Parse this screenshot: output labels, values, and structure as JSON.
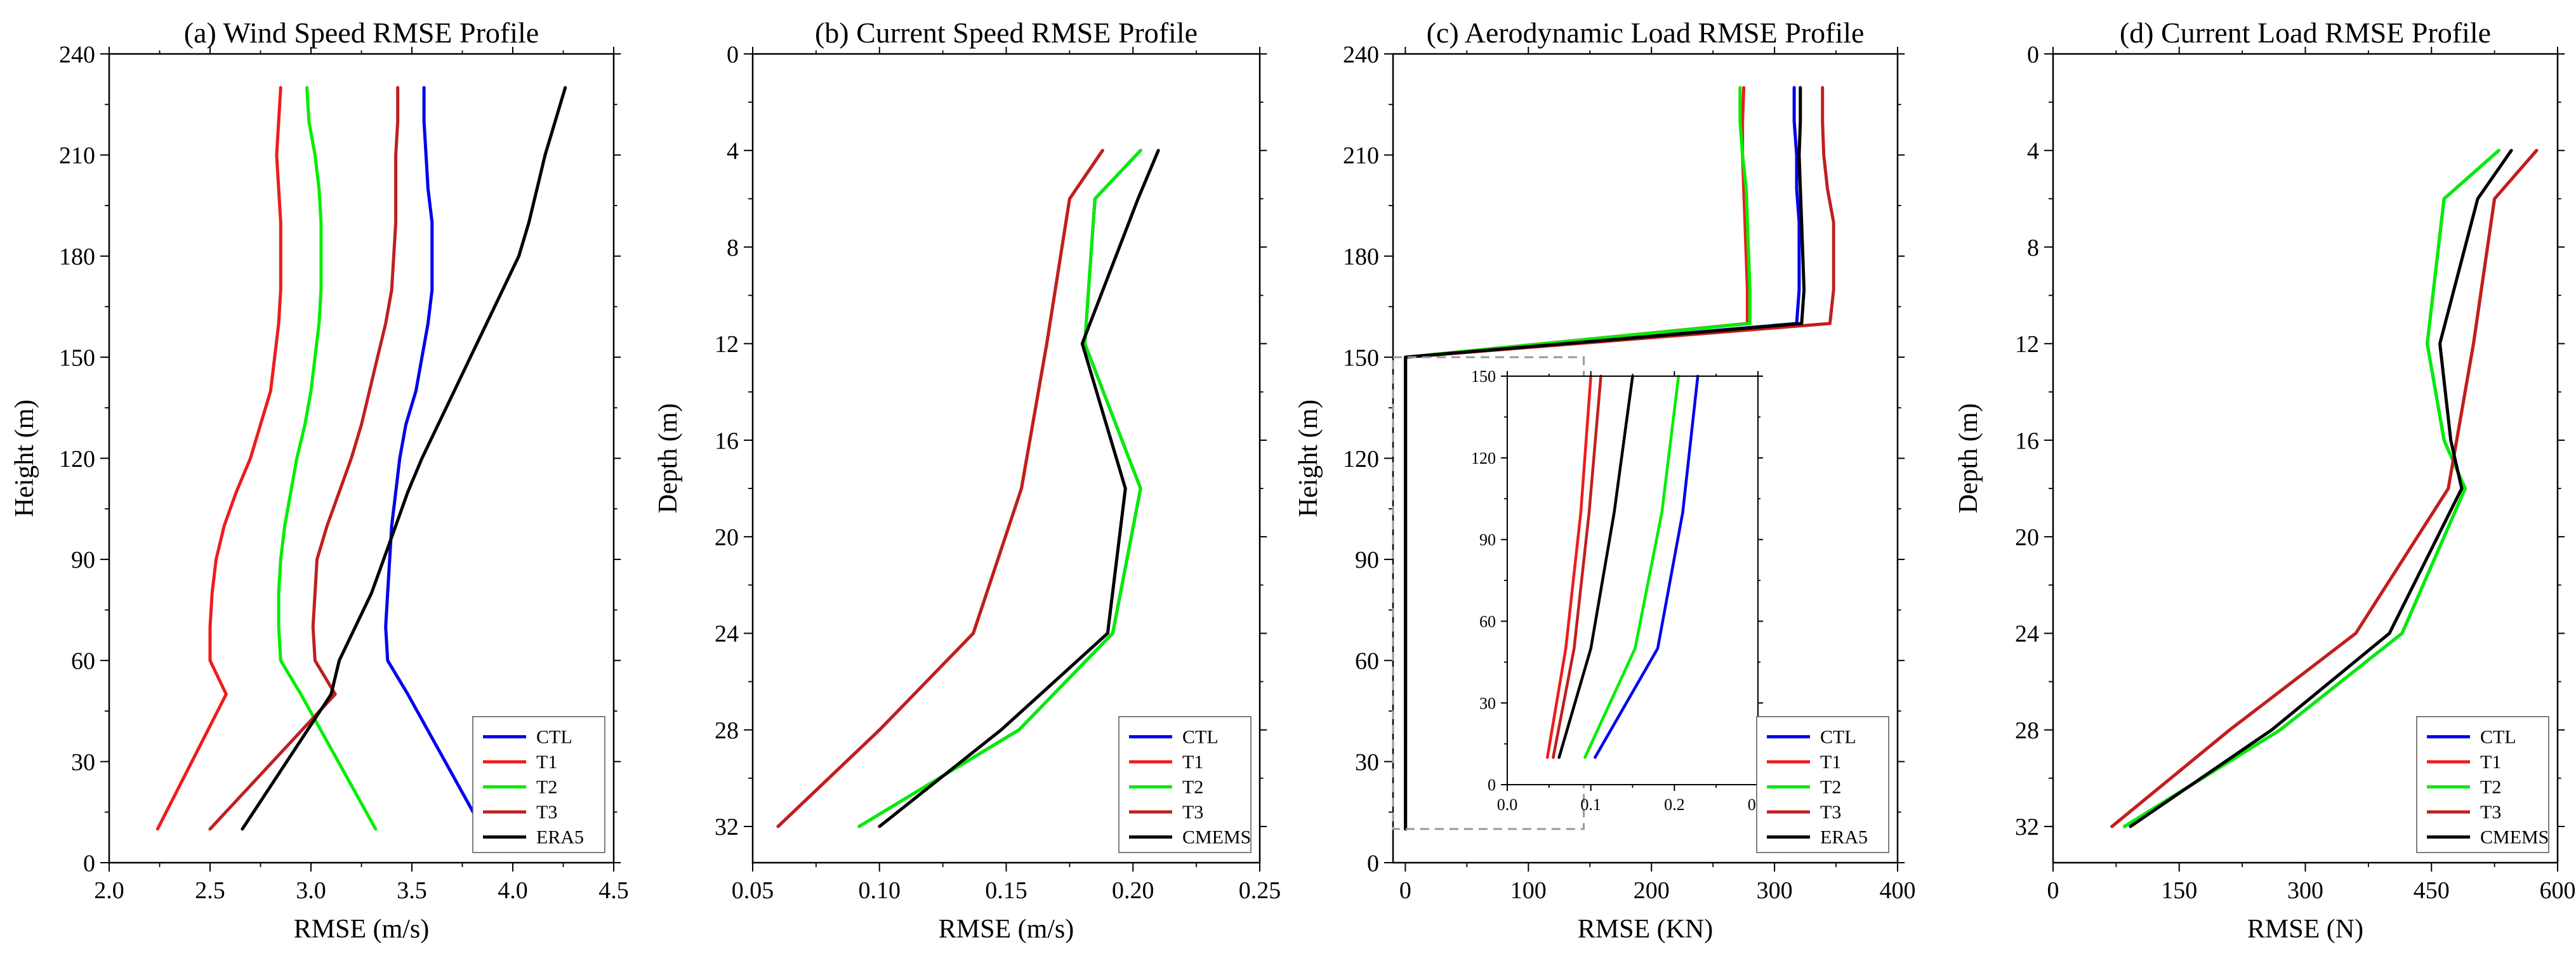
{
  "colors": {
    "CTL": "#0000ee",
    "T1": "#ee1c1c",
    "T2": "#00ee00",
    "T3": "#c01f1f",
    "ERA5": "#000000",
    "CMEMS": "#000000",
    "inset_box": "#999999"
  },
  "chart_data": [
    {
      "type": "line",
      "panel": "a",
      "title": "(a) Wind Speed RMSE Profile",
      "xlabel": "RMSE (m/s)",
      "ylabel": "Height (m)",
      "xlim": [
        2.0,
        4.5
      ],
      "ylim": [
        0,
        240
      ],
      "y_inverted": false,
      "xticks": [
        2.0,
        2.5,
        3.0,
        3.5,
        4.0,
        4.5
      ],
      "xtick_labels": [
        "2.0",
        "2.5",
        "3.0",
        "3.5",
        "4.0",
        "4.5"
      ],
      "yticks": [
        0,
        30,
        60,
        90,
        120,
        150,
        180,
        210,
        240
      ],
      "ytick_labels": [
        "0",
        "30",
        "60",
        "90",
        "120",
        "150",
        "180",
        "210",
        "240"
      ],
      "legend_position": "bottom-right",
      "y": [
        10,
        50,
        60,
        70,
        80,
        90,
        100,
        110,
        120,
        130,
        140,
        150,
        160,
        170,
        180,
        190,
        200,
        210,
        220,
        230
      ],
      "series": [
        {
          "name": "CTL",
          "color_key": "CTL",
          "x": [
            3.85,
            3.48,
            3.38,
            3.37,
            3.38,
            3.39,
            3.4,
            3.42,
            3.44,
            3.47,
            3.52,
            3.55,
            3.58,
            3.6,
            3.6,
            3.6,
            3.58,
            3.57,
            3.56,
            3.56
          ]
        },
        {
          "name": "T1",
          "color_key": "T1",
          "x": [
            2.24,
            2.58,
            2.5,
            2.5,
            2.51,
            2.53,
            2.57,
            2.63,
            2.7,
            2.75,
            2.8,
            2.82,
            2.84,
            2.85,
            2.85,
            2.85,
            2.84,
            2.83,
            2.84,
            2.85
          ]
        },
        {
          "name": "T2",
          "color_key": "T2",
          "x": [
            3.32,
            2.95,
            2.85,
            2.84,
            2.84,
            2.85,
            2.87,
            2.9,
            2.93,
            2.97,
            3.0,
            3.02,
            3.04,
            3.05,
            3.05,
            3.05,
            3.04,
            3.02,
            2.99,
            2.98
          ]
        },
        {
          "name": "T3",
          "color_key": "T3",
          "x": [
            2.5,
            3.12,
            3.02,
            3.01,
            3.02,
            3.03,
            3.08,
            3.14,
            3.2,
            3.25,
            3.29,
            3.33,
            3.37,
            3.4,
            3.41,
            3.42,
            3.42,
            3.42,
            3.43,
            3.43
          ]
        },
        {
          "name": "ERA5",
          "color_key": "ERA5",
          "x": [
            2.66,
            3.1,
            3.14,
            3.22,
            3.3,
            3.36,
            3.42,
            3.48,
            3.55,
            3.63,
            3.71,
            3.79,
            3.87,
            3.95,
            4.03,
            4.08,
            4.12,
            4.16,
            4.21,
            4.26
          ]
        }
      ]
    },
    {
      "type": "line",
      "panel": "b",
      "title": "(b) Current Speed RMSE Profile",
      "xlabel": "RMSE (m/s)",
      "ylabel": "Depth (m)",
      "xlim": [
        0.05,
        0.25
      ],
      "ylim": [
        0,
        33.5
      ],
      "y_inverted": true,
      "xticks": [
        0.05,
        0.1,
        0.15,
        0.2,
        0.25
      ],
      "xtick_labels": [
        "0.05",
        "0.10",
        "0.15",
        "0.20",
        "0.25"
      ],
      "yticks": [
        0,
        4,
        8,
        12,
        16,
        20,
        24,
        28,
        32
      ],
      "ytick_labels": [
        "0",
        "4",
        "8",
        "12",
        "16",
        "20",
        "24",
        "28",
        "32"
      ],
      "legend_position": "bottom-right",
      "y": [
        4,
        6,
        12,
        18,
        24,
        28,
        32
      ],
      "series": [
        {
          "name": "CTL",
          "color_key": "CTL",
          "x": [
            0.203,
            0.185,
            0.181,
            0.203,
            0.192,
            0.155,
            0.092
          ]
        },
        {
          "name": "T1",
          "color_key": "T1",
          "x": [
            0.188,
            0.175,
            0.166,
            0.156,
            0.137,
            0.1,
            0.06
          ]
        },
        {
          "name": "T2",
          "color_key": "T2",
          "x": [
            0.203,
            0.185,
            0.181,
            0.203,
            0.192,
            0.155,
            0.092
          ]
        },
        {
          "name": "T3",
          "color_key": "T3",
          "x": [
            0.188,
            0.175,
            0.166,
            0.156,
            0.137,
            0.1,
            0.06
          ]
        },
        {
          "name": "CMEMS",
          "color_key": "CMEMS",
          "x": [
            0.21,
            0.202,
            0.18,
            0.197,
            0.19,
            0.148,
            0.1
          ]
        }
      ]
    },
    {
      "type": "line",
      "panel": "c",
      "title": "(c) Aerodynamic Load RMSE Profile",
      "xlabel": "RMSE (KN)",
      "ylabel": "Height (m)",
      "xlim": [
        -10,
        400
      ],
      "ylim": [
        0,
        240
      ],
      "y_inverted": false,
      "xticks": [
        0,
        100,
        200,
        300,
        400
      ],
      "xtick_labels": [
        "0",
        "100",
        "200",
        "300",
        "400"
      ],
      "yticks": [
        0,
        30,
        60,
        90,
        120,
        150,
        180,
        210,
        240
      ],
      "ytick_labels": [
        "0",
        "30",
        "60",
        "90",
        "120",
        "150",
        "180",
        "210",
        "240"
      ],
      "legend_position": "bottom-right",
      "y": [
        10,
        50,
        100,
        150,
        160,
        170,
        180,
        190,
        200,
        210,
        220,
        230
      ],
      "series": [
        {
          "name": "CTL",
          "color_key": "CTL",
          "x": [
            0.1,
            0.2,
            0.2,
            0.2,
            318,
            320,
            320,
            320,
            318,
            318,
            316,
            316
          ]
        },
        {
          "name": "T1",
          "color_key": "T1",
          "x": [
            0.1,
            0.1,
            0.1,
            0.1,
            278,
            278,
            277,
            276,
            275,
            274,
            274,
            275
          ]
        },
        {
          "name": "T2",
          "color_key": "T2",
          "x": [
            0.1,
            0.1,
            0.1,
            0.2,
            280,
            280,
            279,
            278,
            277,
            274,
            272,
            272
          ]
        },
        {
          "name": "T3",
          "color_key": "T3",
          "x": [
            0.1,
            0.1,
            0.1,
            0.1,
            345,
            348,
            348,
            348,
            343,
            340,
            339,
            339
          ]
        },
        {
          "name": "ERA5",
          "color_key": "ERA5",
          "x": [
            0.1,
            0.1,
            0.1,
            0.1,
            322,
            324,
            323,
            322,
            321,
            320,
            321,
            321
          ]
        }
      ],
      "inset": {
        "xlim": [
          0.0,
          0.3
        ],
        "ylim": [
          0,
          150
        ],
        "xticks": [
          0.0,
          0.1,
          0.2,
          0.3
        ],
        "xtick_labels": [
          "0.0",
          "0.1",
          "0.2",
          "0.3"
        ],
        "yticks": [
          0,
          30,
          60,
          90,
          120,
          150
        ],
        "ytick_labels": [
          "0",
          "30",
          "60",
          "90",
          "120",
          "150"
        ],
        "zoom_region": {
          "xlim": [
            -10,
            145
          ],
          "ylim": [
            10,
            150
          ]
        },
        "y": [
          10,
          50,
          100,
          150
        ],
        "series": [
          {
            "name": "CTL",
            "color_key": "CTL",
            "x": [
              0.105,
              0.18,
              0.21,
              0.228
            ]
          },
          {
            "name": "T1",
            "color_key": "T1",
            "x": [
              0.048,
              0.07,
              0.088,
              0.1
            ]
          },
          {
            "name": "T2",
            "color_key": "T2",
            "x": [
              0.093,
              0.153,
              0.185,
              0.205
            ]
          },
          {
            "name": "T3",
            "color_key": "T3",
            "x": [
              0.055,
              0.08,
              0.098,
              0.112
            ]
          },
          {
            "name": "ERA5",
            "color_key": "ERA5",
            "x": [
              0.062,
              0.1,
              0.128,
              0.15
            ]
          }
        ]
      }
    },
    {
      "type": "line",
      "panel": "d",
      "title": "(d) Current Load RMSE Profile",
      "xlabel": "RMSE (N)",
      "ylabel": "Depth (m)",
      "xlim": [
        0,
        600
      ],
      "ylim": [
        0,
        33.5
      ],
      "y_inverted": true,
      "xticks": [
        0,
        150,
        300,
        450,
        600
      ],
      "xtick_labels": [
        "0",
        "150",
        "300",
        "450",
        "600"
      ],
      "yticks": [
        0,
        4,
        8,
        12,
        16,
        20,
        24,
        28,
        32
      ],
      "ytick_labels": [
        "0",
        "4",
        "8",
        "12",
        "16",
        "20",
        "24",
        "28",
        "32"
      ],
      "legend_position": "bottom-right",
      "y": [
        4,
        6,
        12,
        16,
        18,
        24,
        28,
        32
      ],
      "series": [
        {
          "name": "CTL",
          "color_key": "CTL",
          "x": [
            530,
            465,
            445,
            465,
            490,
            415,
            270,
            85
          ]
        },
        {
          "name": "T1",
          "color_key": "T1",
          "x": [
            575,
            525,
            500,
            480,
            470,
            360,
            210,
            70
          ]
        },
        {
          "name": "T2",
          "color_key": "T2",
          "x": [
            530,
            465,
            445,
            465,
            490,
            415,
            270,
            85
          ]
        },
        {
          "name": "T3",
          "color_key": "T3",
          "x": [
            575,
            525,
            500,
            480,
            470,
            360,
            210,
            70
          ]
        },
        {
          "name": "CMEMS",
          "color_key": "CMEMS",
          "x": [
            545,
            505,
            460,
            473,
            486,
            400,
            260,
            92
          ]
        }
      ]
    }
  ]
}
